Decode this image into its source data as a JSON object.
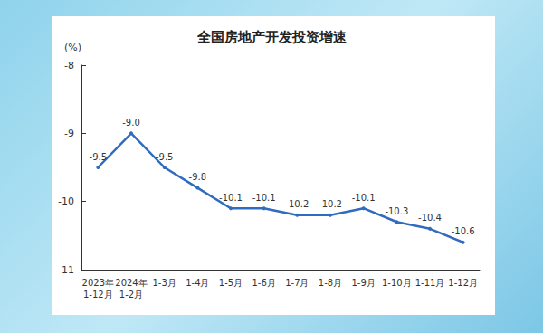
{
  "chart_data": {
    "type": "line",
    "title": "全国房地产开发投资增速",
    "ylabel": "(%)",
    "categories": [
      "2023年\n1-12月",
      "2024年\n1-2月",
      "1-3月",
      "1-4月",
      "1-5月",
      "1-6月",
      "1-7月",
      "1-8月",
      "1-9月",
      "1-10月",
      "1-11月",
      "1-12月"
    ],
    "values": [
      -9.5,
      -9.0,
      -9.5,
      -9.8,
      -10.1,
      -10.1,
      -10.2,
      -10.2,
      -10.1,
      -10.3,
      -10.4,
      -10.6
    ],
    "value_labels": [
      "-9.5",
      "-9.0",
      "-9.5",
      "-9.8",
      "-10.1",
      "-10.1",
      "-10.2",
      "-10.2",
      "-10.1",
      "-10.3",
      "-10.4",
      "-10.6"
    ],
    "color": "#2f6cbf",
    "ylim": [
      -11,
      -8
    ],
    "yticks": [
      -11,
      -10,
      -9,
      -8
    ],
    "grid": false,
    "data_labels": true
  }
}
